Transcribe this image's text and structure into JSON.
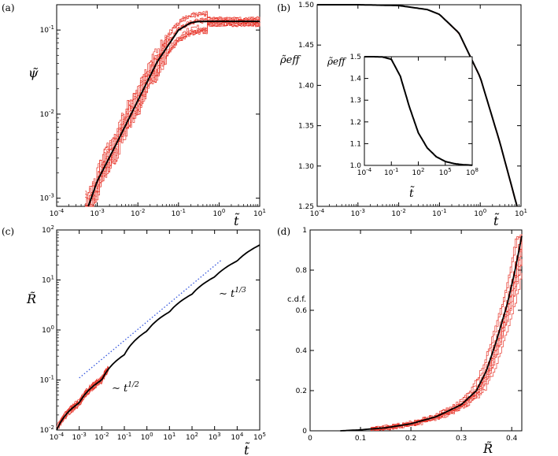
{
  "colors": {
    "sample": "#e8392e",
    "mean": "#000000",
    "fit": "#3355dd"
  },
  "chart_data": [
    {
      "id": "a",
      "panel_label": "(a)",
      "type": "line",
      "xscale": "log",
      "yscale": "log",
      "xlim": [
        0.0001,
        10
      ],
      "ylim": [
        0.0008,
        0.2
      ],
      "xlabel": "t̃",
      "ylabel": "ψ̃",
      "xticks": [
        0.0001,
        0.001,
        0.01,
        0.1,
        1,
        10
      ],
      "yticks": [
        0.001,
        0.01,
        0.1
      ],
      "series": [
        {
          "name": "mean",
          "x": [
            0.0006,
            0.001,
            0.003,
            0.01,
            0.03,
            0.1,
            0.2,
            0.3,
            0.5,
            1,
            3,
            10
          ],
          "y": [
            0.0008,
            0.0016,
            0.0045,
            0.0145,
            0.042,
            0.1,
            0.122,
            0.126,
            0.127,
            0.127,
            0.127,
            0.127
          ]
        }
      ],
      "note": "red: individual realisations (stepwise fluctuations around mean)"
    },
    {
      "id": "b",
      "panel_label": "(b)",
      "type": "line",
      "xscale": "log",
      "yscale": "linear",
      "xlim": [
        0.0001,
        10
      ],
      "ylim": [
        1.25,
        1.5
      ],
      "xlabel": "t̃",
      "ylabel": "ρ̃eff",
      "xticks": [
        0.0001,
        0.001,
        0.01,
        0.1,
        1,
        10
      ],
      "yticks": [
        1.25,
        1.3,
        1.35,
        1.4,
        1.45,
        1.5
      ],
      "series": [
        {
          "name": "mean",
          "x": [
            0.0001,
            0.001,
            0.01,
            0.05,
            0.1,
            0.3,
            1,
            3,
            8
          ],
          "y": [
            1.5,
            1.5,
            1.499,
            1.494,
            1.488,
            1.465,
            1.41,
            1.33,
            1.25
          ]
        }
      ],
      "inset": {
        "xscale": "log",
        "yscale": "linear",
        "xlim": [
          0.0001,
          100000000.0
        ],
        "ylim": [
          1.0,
          1.5
        ],
        "xlabel": "t̃",
        "ylabel": "ρ̃eff",
        "xticks": [
          0.0001,
          0.1,
          100,
          100000,
          100000000.0
        ],
        "yticks": [
          1.0,
          1.1,
          1.2,
          1.3,
          1.4,
          1.5
        ],
        "series": [
          {
            "name": "mean",
            "x": [
              0.0001,
              0.001,
              0.01,
              0.1,
              1,
              10,
              100,
              1000,
              10000,
              100000,
              1000000,
              10000000.0,
              100000000.0
            ],
            "y": [
              1.5,
              1.5,
              1.499,
              1.488,
              1.41,
              1.27,
              1.15,
              1.08,
              1.04,
              1.018,
              1.008,
              1.003,
              1.001
            ]
          }
        ]
      }
    },
    {
      "id": "c",
      "panel_label": "(c)",
      "type": "line",
      "xscale": "log",
      "yscale": "log",
      "xlim": [
        0.0001,
        100000
      ],
      "ylim": [
        0.01,
        100
      ],
      "xlabel": "t̃",
      "ylabel": "R̃",
      "xticks": [
        0.0001,
        0.001,
        0.01,
        0.1,
        1,
        10,
        100,
        1000,
        10000,
        100000
      ],
      "yticks": [
        0.01,
        0.1,
        1,
        10,
        100
      ],
      "series": [
        {
          "name": "mean",
          "x": [
            0.0001,
            0.001,
            0.01,
            0.1,
            1,
            10,
            100,
            1000,
            10000,
            100000
          ],
          "y": [
            0.01,
            0.035,
            0.1,
            0.32,
            0.95,
            2.3,
            5.2,
            11.5,
            24,
            50
          ]
        },
        {
          "name": "fit",
          "style": "dotted",
          "x": [
            0.001,
            2000
          ],
          "y": [
            0.11,
            25
          ]
        }
      ],
      "annotations": [
        {
          "text": "~ t^{1/2}",
          "prefix": "∼ ",
          "base": "t",
          "sup": "1/2"
        },
        {
          "text": "~ t^{1/3}",
          "prefix": "∼ ",
          "base": "t",
          "sup": "1/3"
        }
      ]
    },
    {
      "id": "d",
      "panel_label": "(d)",
      "type": "line",
      "xscale": "linear",
      "yscale": "linear",
      "xlim": [
        0,
        0.42
      ],
      "ylim": [
        0,
        1
      ],
      "xlabel": "R̃",
      "ylabel": "c.d.f.",
      "xticks": [
        0,
        0.1,
        0.2,
        0.3,
        0.4
      ],
      "xtick_labels": [
        "0",
        "0.1",
        "0.2",
        "0.3",
        "0.4"
      ],
      "yticks": [
        0,
        0.2,
        0.4,
        0.6,
        0.8,
        1
      ],
      "ytick_labels": [
        "0",
        "0.2",
        "0.4",
        "0.6",
        "0.8",
        "1"
      ],
      "series": [
        {
          "name": "mean",
          "x": [
            0.06,
            0.1,
            0.15,
            0.2,
            0.25,
            0.3,
            0.33,
            0.35,
            0.37,
            0.39,
            0.405,
            0.42
          ],
          "y": [
            0.0,
            0.005,
            0.015,
            0.035,
            0.07,
            0.13,
            0.2,
            0.3,
            0.45,
            0.62,
            0.78,
            0.97
          ]
        }
      ]
    }
  ]
}
